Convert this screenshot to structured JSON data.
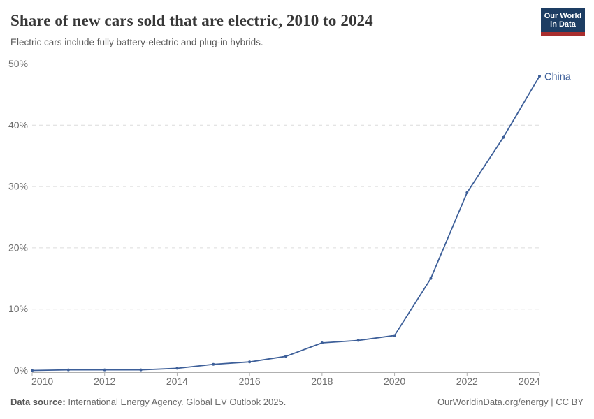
{
  "header": {
    "title": "Share of new cars sold that are electric, 2010 to 2024",
    "subtitle": "Electric cars include fully battery-electric and plug-in hybrids.",
    "logo": {
      "line1": "Our World",
      "line2": "in Data",
      "bg_color": "#1d3d63",
      "accent_color": "#a92e2e"
    }
  },
  "chart_data": {
    "type": "line",
    "title": "Share of new cars sold that are electric, 2010 to 2024",
    "xlabel": "",
    "ylabel": "",
    "xlim": [
      2010,
      2024
    ],
    "ylim": [
      0,
      50
    ],
    "grid": "horizontal-dashed",
    "legend_position": "end-of-line-label",
    "x": [
      2010,
      2011,
      2012,
      2013,
      2014,
      2015,
      2016,
      2017,
      2018,
      2019,
      2020,
      2021,
      2022,
      2023,
      2024
    ],
    "series": [
      {
        "name": "China",
        "color": "#3d5f99",
        "values": [
          0,
          0.1,
          0.1,
          0.1,
          0.35,
          1,
          1.4,
          2.3,
          4.5,
          4.9,
          5.7,
          15,
          29,
          38,
          48
        ]
      }
    ],
    "x_tick_labels": [
      "2010",
      "2012",
      "2014",
      "2016",
      "2018",
      "2020",
      "2022",
      "2024"
    ],
    "x_ticks": [
      2010,
      2012,
      2014,
      2016,
      2018,
      2020,
      2022,
      2024
    ],
    "y_ticks": [
      0,
      10,
      20,
      30,
      40,
      50
    ],
    "y_tick_labels": [
      "0%",
      "10%",
      "20%",
      "30%",
      "40%",
      "50%"
    ],
    "colors": {
      "gridline": "#dcdcdc",
      "axis": "#b0b0b0",
      "tick_label": "#6e6e6e"
    }
  },
  "footer": {
    "source_label": "Data source:",
    "source_text": " International Energy Agency. Global EV Outlook 2025.",
    "rights": "OurWorldinData.org/energy | CC BY"
  }
}
